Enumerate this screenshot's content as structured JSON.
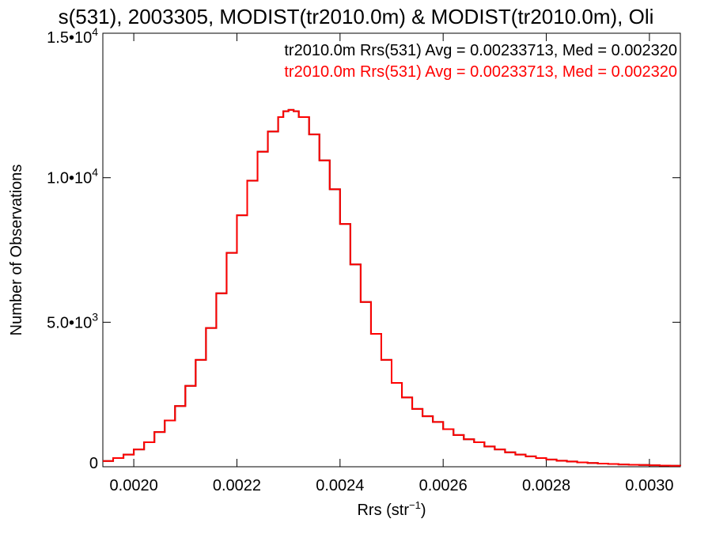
{
  "chart_data": {
    "type": "line",
    "title": "s(531), 2003305, MODIST(tr2010.0m) & MODIST(tr2010.0m), Oli",
    "xlabel": "Rrs (str",
    "xlabel_sup": "−1",
    "xlabel_end": ")",
    "ylabel": "Number of Observations",
    "xlim": [
      0.00194,
      0.00306
    ],
    "ylim": [
      0,
      15000
    ],
    "x_ticks": [
      {
        "value": 0.002,
        "label": "0.0020"
      },
      {
        "value": 0.0022,
        "label": "0.0022"
      },
      {
        "value": 0.0024,
        "label": "0.0024"
      },
      {
        "value": 0.0026,
        "label": "0.0026"
      },
      {
        "value": 0.0028,
        "label": "0.0028"
      },
      {
        "value": 0.003,
        "label": "0.0030"
      }
    ],
    "y_ticks": [
      {
        "value": 0,
        "mant": "0",
        "exp": ""
      },
      {
        "value": 5000,
        "mant": "5.0•10",
        "exp": "3"
      },
      {
        "value": 10000,
        "mant": "1.0•10",
        "exp": "4"
      },
      {
        "value": 15000,
        "mant": "1.5•10",
        "exp": "4"
      }
    ],
    "grid": false,
    "legend_position": "top-right",
    "series": [
      {
        "name": "tr2010.0m Rrs(531) Avg = 0.00233713, Med = 0.002320",
        "color": "#000000",
        "x": [
          0.00194,
          0.00196,
          0.00198,
          0.002,
          0.00202,
          0.00204,
          0.00206,
          0.00208,
          0.0021,
          0.00212,
          0.00214,
          0.00216,
          0.00218,
          0.0022,
          0.00222,
          0.00224,
          0.00226,
          0.00228,
          0.00229,
          0.0023,
          0.00231,
          0.00232,
          0.00234,
          0.00236,
          0.00238,
          0.0024,
          0.00242,
          0.00244,
          0.00246,
          0.00248,
          0.0025,
          0.00252,
          0.00254,
          0.00256,
          0.00258,
          0.0026,
          0.00262,
          0.00264,
          0.00266,
          0.00268,
          0.0027,
          0.00272,
          0.00274,
          0.00276,
          0.00278,
          0.0028,
          0.00282,
          0.00284,
          0.00286,
          0.00288,
          0.0029,
          0.00292,
          0.00294,
          0.00296,
          0.00298,
          0.003,
          0.00302,
          0.00304,
          0.00306
        ],
        "y": [
          200,
          300,
          420,
          600,
          850,
          1200,
          1600,
          2100,
          2800,
          3700,
          4800,
          6000,
          7400,
          8700,
          9900,
          10900,
          11600,
          12100,
          12300,
          12350,
          12300,
          12100,
          11500,
          10600,
          9600,
          8400,
          7000,
          5700,
          4600,
          3700,
          2900,
          2400,
          2000,
          1750,
          1550,
          1300,
          1100,
          950,
          850,
          700,
          600,
          500,
          420,
          360,
          300,
          250,
          210,
          180,
          150,
          130,
          110,
          95,
          80,
          70,
          60,
          50,
          40,
          35,
          30
        ]
      },
      {
        "name": "tr2010.0m Rrs(531) Avg = 0.00233713, Med = 0.002320",
        "color": "#ff0000",
        "x": [
          0.00194,
          0.00196,
          0.00198,
          0.002,
          0.00202,
          0.00204,
          0.00206,
          0.00208,
          0.0021,
          0.00212,
          0.00214,
          0.00216,
          0.00218,
          0.0022,
          0.00222,
          0.00224,
          0.00226,
          0.00228,
          0.00229,
          0.0023,
          0.00231,
          0.00232,
          0.00234,
          0.00236,
          0.00238,
          0.0024,
          0.00242,
          0.00244,
          0.00246,
          0.00248,
          0.0025,
          0.00252,
          0.00254,
          0.00256,
          0.00258,
          0.0026,
          0.00262,
          0.00264,
          0.00266,
          0.00268,
          0.0027,
          0.00272,
          0.00274,
          0.00276,
          0.00278,
          0.0028,
          0.00282,
          0.00284,
          0.00286,
          0.00288,
          0.0029,
          0.00292,
          0.00294,
          0.00296,
          0.00298,
          0.003,
          0.00302,
          0.00304,
          0.00306
        ],
        "y": [
          200,
          300,
          420,
          600,
          850,
          1200,
          1600,
          2100,
          2800,
          3700,
          4800,
          6000,
          7400,
          8700,
          9900,
          10900,
          11600,
          12100,
          12300,
          12350,
          12300,
          12100,
          11500,
          10600,
          9600,
          8400,
          7000,
          5700,
          4600,
          3700,
          2900,
          2400,
          2000,
          1750,
          1550,
          1300,
          1100,
          950,
          850,
          700,
          600,
          500,
          420,
          360,
          300,
          250,
          210,
          180,
          150,
          130,
          110,
          95,
          80,
          70,
          60,
          50,
          40,
          35,
          30
        ]
      }
    ]
  }
}
